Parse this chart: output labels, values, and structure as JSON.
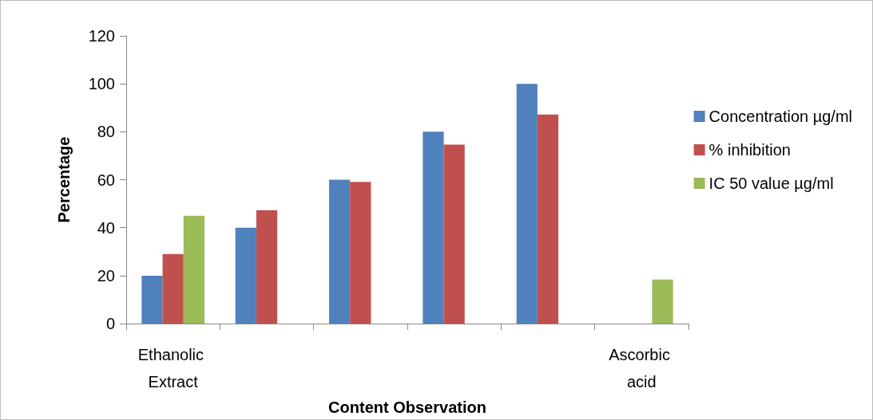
{
  "chart_data": {
    "type": "bar",
    "xlabel": "Content Observation",
    "ylabel": "Percentage",
    "categories": [
      "Ethanolic Extract",
      null,
      null,
      null,
      null,
      "Ascorbic acid"
    ],
    "series": [
      {
        "name": "Concentration µg/ml",
        "color": "#4f81bd",
        "values": [
          20,
          40,
          60,
          80,
          100,
          null
        ]
      },
      {
        "name": "% inhibition",
        "color": "#c0504d",
        "values": [
          29,
          47.3,
          59.1,
          74.6,
          87.2,
          null
        ]
      },
      {
        "name": "IC 50 value µg/ml",
        "color": "#9bbb59",
        "values": [
          45,
          null,
          null,
          null,
          null,
          18.4
        ]
      }
    ],
    "ylim": [
      0,
      120
    ],
    "yticks": [
      0,
      20,
      40,
      60,
      80,
      100,
      120
    ],
    "grid": false,
    "legend": "right"
  }
}
